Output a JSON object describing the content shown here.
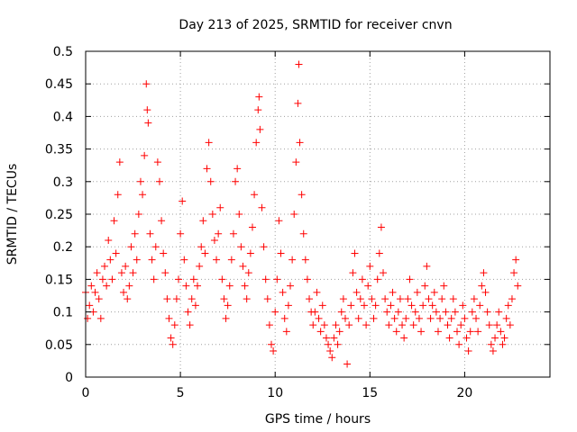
{
  "chart_data": {
    "type": "scatter",
    "title": "Day 213 of 2025, SRMTID for receiver cnvn",
    "xlabel": "GPS time / hours",
    "ylabel": "SRMTID / TECUs",
    "xlim": [
      0,
      24.5
    ],
    "ylim": [
      0,
      0.5
    ],
    "xticks": [
      0,
      5,
      10,
      15,
      20
    ],
    "xtick_labels": [
      "0",
      "5",
      "10",
      "15",
      "20"
    ],
    "yticks": [
      0,
      0.05,
      0.1,
      0.15,
      0.2,
      0.25,
      0.3,
      0.35,
      0.4,
      0.45,
      0.5
    ],
    "ytick_labels": [
      "0",
      "0.05",
      "0.1",
      "0.15",
      "0.2",
      "0.25",
      "0.3",
      "0.35",
      "0.4",
      "0.45",
      "0.5"
    ],
    "grid": true,
    "marker": "+",
    "color": "#ff0000",
    "series": [
      {
        "name": "SRMTID",
        "points": [
          [
            0.0,
            0.13
          ],
          [
            0.1,
            0.09
          ],
          [
            0.2,
            0.11
          ],
          [
            0.3,
            0.14
          ],
          [
            0.4,
            0.1
          ],
          [
            0.5,
            0.13
          ],
          [
            0.6,
            0.16
          ],
          [
            0.7,
            0.12
          ],
          [
            0.8,
            0.09
          ],
          [
            0.9,
            0.15
          ],
          [
            1.0,
            0.17
          ],
          [
            1.1,
            0.14
          ],
          [
            1.2,
            0.21
          ],
          [
            1.3,
            0.18
          ],
          [
            1.4,
            0.15
          ],
          [
            1.5,
            0.24
          ],
          [
            1.6,
            0.19
          ],
          [
            1.7,
            0.28
          ],
          [
            1.8,
            0.33
          ],
          [
            1.9,
            0.16
          ],
          [
            2.0,
            0.13
          ],
          [
            2.1,
            0.17
          ],
          [
            2.2,
            0.12
          ],
          [
            2.3,
            0.14
          ],
          [
            2.4,
            0.2
          ],
          [
            2.5,
            0.16
          ],
          [
            2.6,
            0.22
          ],
          [
            2.7,
            0.18
          ],
          [
            2.8,
            0.25
          ],
          [
            2.9,
            0.3
          ],
          [
            3.0,
            0.28
          ],
          [
            3.1,
            0.34
          ],
          [
            3.2,
            0.45
          ],
          [
            3.25,
            0.41
          ],
          [
            3.3,
            0.39
          ],
          [
            3.4,
            0.22
          ],
          [
            3.5,
            0.18
          ],
          [
            3.6,
            0.15
          ],
          [
            3.7,
            0.2
          ],
          [
            3.8,
            0.33
          ],
          [
            3.9,
            0.3
          ],
          [
            4.0,
            0.24
          ],
          [
            4.1,
            0.19
          ],
          [
            4.2,
            0.16
          ],
          [
            4.3,
            0.12
          ],
          [
            4.4,
            0.09
          ],
          [
            4.5,
            0.06
          ],
          [
            4.6,
            0.05
          ],
          [
            4.7,
            0.08
          ],
          [
            4.8,
            0.12
          ],
          [
            4.9,
            0.15
          ],
          [
            5.0,
            0.22
          ],
          [
            5.1,
            0.27
          ],
          [
            5.2,
            0.18
          ],
          [
            5.3,
            0.14
          ],
          [
            5.4,
            0.1
          ],
          [
            5.5,
            0.08
          ],
          [
            5.6,
            0.12
          ],
          [
            5.7,
            0.15
          ],
          [
            5.8,
            0.11
          ],
          [
            5.9,
            0.14
          ],
          [
            6.0,
            0.17
          ],
          [
            6.1,
            0.2
          ],
          [
            6.2,
            0.24
          ],
          [
            6.3,
            0.19
          ],
          [
            6.4,
            0.32
          ],
          [
            6.5,
            0.36
          ],
          [
            6.6,
            0.3
          ],
          [
            6.7,
            0.25
          ],
          [
            6.8,
            0.21
          ],
          [
            6.9,
            0.18
          ],
          [
            7.0,
            0.22
          ],
          [
            7.1,
            0.26
          ],
          [
            7.2,
            0.15
          ],
          [
            7.3,
            0.12
          ],
          [
            7.4,
            0.09
          ],
          [
            7.5,
            0.11
          ],
          [
            7.6,
            0.14
          ],
          [
            7.7,
            0.18
          ],
          [
            7.8,
            0.22
          ],
          [
            7.9,
            0.3
          ],
          [
            8.0,
            0.32
          ],
          [
            8.1,
            0.25
          ],
          [
            8.2,
            0.2
          ],
          [
            8.3,
            0.17
          ],
          [
            8.4,
            0.14
          ],
          [
            8.5,
            0.12
          ],
          [
            8.6,
            0.16
          ],
          [
            8.7,
            0.19
          ],
          [
            8.8,
            0.23
          ],
          [
            8.9,
            0.28
          ],
          [
            9.0,
            0.36
          ],
          [
            9.1,
            0.41
          ],
          [
            9.15,
            0.43
          ],
          [
            9.2,
            0.38
          ],
          [
            9.3,
            0.26
          ],
          [
            9.4,
            0.2
          ],
          [
            9.5,
            0.15
          ],
          [
            9.6,
            0.12
          ],
          [
            9.7,
            0.08
          ],
          [
            9.8,
            0.05
          ],
          [
            9.9,
            0.04
          ],
          [
            10.0,
            0.1
          ],
          [
            10.1,
            0.15
          ],
          [
            10.2,
            0.24
          ],
          [
            10.3,
            0.19
          ],
          [
            10.4,
            0.13
          ],
          [
            10.5,
            0.09
          ],
          [
            10.6,
            0.07
          ],
          [
            10.7,
            0.11
          ],
          [
            10.8,
            0.14
          ],
          [
            10.9,
            0.18
          ],
          [
            11.0,
            0.25
          ],
          [
            11.1,
            0.33
          ],
          [
            11.2,
            0.42
          ],
          [
            11.25,
            0.48
          ],
          [
            11.3,
            0.36
          ],
          [
            11.4,
            0.28
          ],
          [
            11.5,
            0.22
          ],
          [
            11.6,
            0.18
          ],
          [
            11.7,
            0.15
          ],
          [
            11.8,
            0.12
          ],
          [
            11.9,
            0.1
          ],
          [
            12.0,
            0.08
          ],
          [
            12.1,
            0.1
          ],
          [
            12.2,
            0.13
          ],
          [
            12.3,
            0.09
          ],
          [
            12.4,
            0.07
          ],
          [
            12.5,
            0.11
          ],
          [
            12.6,
            0.08
          ],
          [
            12.7,
            0.06
          ],
          [
            12.8,
            0.05
          ],
          [
            12.9,
            0.04
          ],
          [
            13.0,
            0.03
          ],
          [
            13.1,
            0.06
          ],
          [
            13.2,
            0.08
          ],
          [
            13.3,
            0.05
          ],
          [
            13.4,
            0.07
          ],
          [
            13.5,
            0.1
          ],
          [
            13.6,
            0.12
          ],
          [
            13.7,
            0.09
          ],
          [
            13.8,
            0.02
          ],
          [
            13.9,
            0.08
          ],
          [
            14.0,
            0.11
          ],
          [
            14.1,
            0.16
          ],
          [
            14.2,
            0.19
          ],
          [
            14.3,
            0.13
          ],
          [
            14.4,
            0.09
          ],
          [
            14.5,
            0.12
          ],
          [
            14.6,
            0.15
          ],
          [
            14.7,
            0.11
          ],
          [
            14.8,
            0.08
          ],
          [
            14.9,
            0.14
          ],
          [
            15.0,
            0.17
          ],
          [
            15.1,
            0.12
          ],
          [
            15.2,
            0.09
          ],
          [
            15.3,
            0.11
          ],
          [
            15.4,
            0.15
          ],
          [
            15.5,
            0.19
          ],
          [
            15.6,
            0.23
          ],
          [
            15.7,
            0.16
          ],
          [
            15.8,
            0.12
          ],
          [
            15.9,
            0.1
          ],
          [
            16.0,
            0.08
          ],
          [
            16.1,
            0.11
          ],
          [
            16.2,
            0.13
          ],
          [
            16.3,
            0.09
          ],
          [
            16.4,
            0.07
          ],
          [
            16.5,
            0.1
          ],
          [
            16.6,
            0.12
          ],
          [
            16.7,
            0.08
          ],
          [
            16.8,
            0.06
          ],
          [
            16.9,
            0.09
          ],
          [
            17.0,
            0.12
          ],
          [
            17.1,
            0.15
          ],
          [
            17.2,
            0.11
          ],
          [
            17.3,
            0.08
          ],
          [
            17.4,
            0.1
          ],
          [
            17.5,
            0.13
          ],
          [
            17.6,
            0.09
          ],
          [
            17.7,
            0.07
          ],
          [
            17.8,
            0.11
          ],
          [
            17.9,
            0.14
          ],
          [
            18.0,
            0.17
          ],
          [
            18.1,
            0.12
          ],
          [
            18.2,
            0.09
          ],
          [
            18.3,
            0.11
          ],
          [
            18.4,
            0.13
          ],
          [
            18.5,
            0.1
          ],
          [
            18.6,
            0.07
          ],
          [
            18.7,
            0.09
          ],
          [
            18.8,
            0.12
          ],
          [
            18.9,
            0.14
          ],
          [
            19.0,
            0.1
          ],
          [
            19.1,
            0.08
          ],
          [
            19.2,
            0.06
          ],
          [
            19.3,
            0.09
          ],
          [
            19.4,
            0.12
          ],
          [
            19.5,
            0.1
          ],
          [
            19.6,
            0.07
          ],
          [
            19.7,
            0.05
          ],
          [
            19.8,
            0.08
          ],
          [
            19.9,
            0.11
          ],
          [
            20.0,
            0.09
          ],
          [
            20.1,
            0.06
          ],
          [
            20.2,
            0.04
          ],
          [
            20.3,
            0.07
          ],
          [
            20.4,
            0.1
          ],
          [
            20.5,
            0.12
          ],
          [
            20.6,
            0.09
          ],
          [
            20.7,
            0.07
          ],
          [
            20.8,
            0.11
          ],
          [
            20.9,
            0.14
          ],
          [
            21.0,
            0.16
          ],
          [
            21.1,
            0.13
          ],
          [
            21.2,
            0.1
          ],
          [
            21.3,
            0.08
          ],
          [
            21.4,
            0.05
          ],
          [
            21.5,
            0.04
          ],
          [
            21.6,
            0.06
          ],
          [
            21.7,
            0.08
          ],
          [
            21.8,
            0.1
          ],
          [
            21.9,
            0.07
          ],
          [
            22.0,
            0.05
          ],
          [
            22.1,
            0.06
          ],
          [
            22.2,
            0.09
          ],
          [
            22.3,
            0.11
          ],
          [
            22.4,
            0.08
          ],
          [
            22.5,
            0.12
          ],
          [
            22.6,
            0.16
          ],
          [
            22.7,
            0.18
          ],
          [
            22.8,
            0.14
          ]
        ]
      }
    ]
  }
}
